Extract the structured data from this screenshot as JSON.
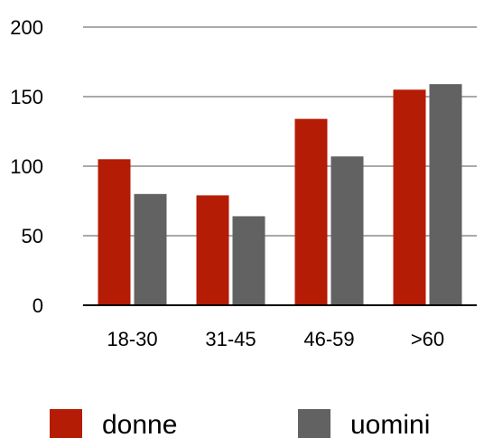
{
  "chart_data": {
    "type": "bar",
    "categories": [
      "18-30",
      "31-45",
      "46-59",
      ">60"
    ],
    "series": [
      {
        "name": "donne",
        "values": [
          105,
          79,
          134,
          155
        ],
        "color": "#b51c05"
      },
      {
        "name": "uomini",
        "values": [
          80,
          64,
          107,
          159
        ],
        "color": "#626262"
      }
    ],
    "y_ticks": [
      "0",
      "50",
      "100",
      "150",
      "200"
    ],
    "ylim": [
      0,
      200
    ],
    "grid": true,
    "legend_position": "bottom",
    "title": "",
    "xlabel": "",
    "ylabel": ""
  }
}
